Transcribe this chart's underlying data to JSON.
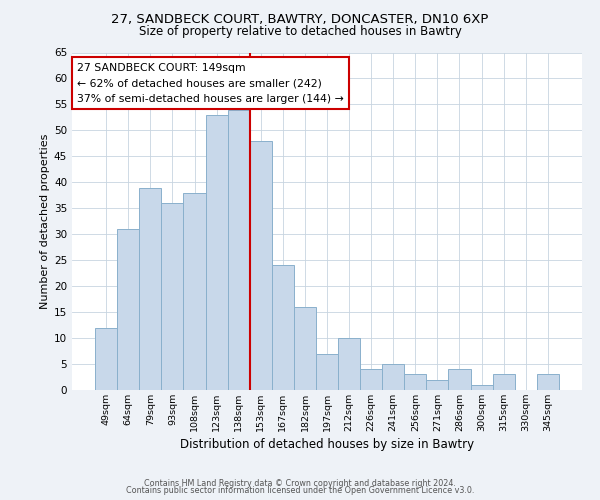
{
  "title1": "27, SANDBECK COURT, BAWTRY, DONCASTER, DN10 6XP",
  "title2": "Size of property relative to detached houses in Bawtry",
  "xlabel": "Distribution of detached houses by size in Bawtry",
  "ylabel": "Number of detached properties",
  "bar_labels": [
    "49sqm",
    "64sqm",
    "79sqm",
    "93sqm",
    "108sqm",
    "123sqm",
    "138sqm",
    "153sqm",
    "167sqm",
    "182sqm",
    "197sqm",
    "212sqm",
    "226sqm",
    "241sqm",
    "256sqm",
    "271sqm",
    "286sqm",
    "300sqm",
    "315sqm",
    "330sqm",
    "345sqm"
  ],
  "bar_values": [
    12,
    31,
    39,
    36,
    38,
    53,
    54,
    48,
    24,
    16,
    7,
    10,
    4,
    5,
    3,
    2,
    4,
    1,
    3,
    0,
    3
  ],
  "bar_color": "#c8d8ea",
  "bar_edgecolor": "#8ab0cc",
  "red_line_color": "#cc0000",
  "annotation_title": "27 SANDBECK COURT: 149sqm",
  "annotation_line1": "← 62% of detached houses are smaller (242)",
  "annotation_line2": "37% of semi-detached houses are larger (144) →",
  "annotation_box_color": "#ffffff",
  "annotation_box_edge": "#cc0000",
  "ylim": [
    0,
    65
  ],
  "yticks": [
    0,
    5,
    10,
    15,
    20,
    25,
    30,
    35,
    40,
    45,
    50,
    55,
    60,
    65
  ],
  "footer1": "Contains HM Land Registry data © Crown copyright and database right 2024.",
  "footer2": "Contains public sector information licensed under the Open Government Licence v3.0.",
  "bg_color": "#eef2f7",
  "plot_bg_color": "#ffffff",
  "grid_color": "#c8d4e0"
}
